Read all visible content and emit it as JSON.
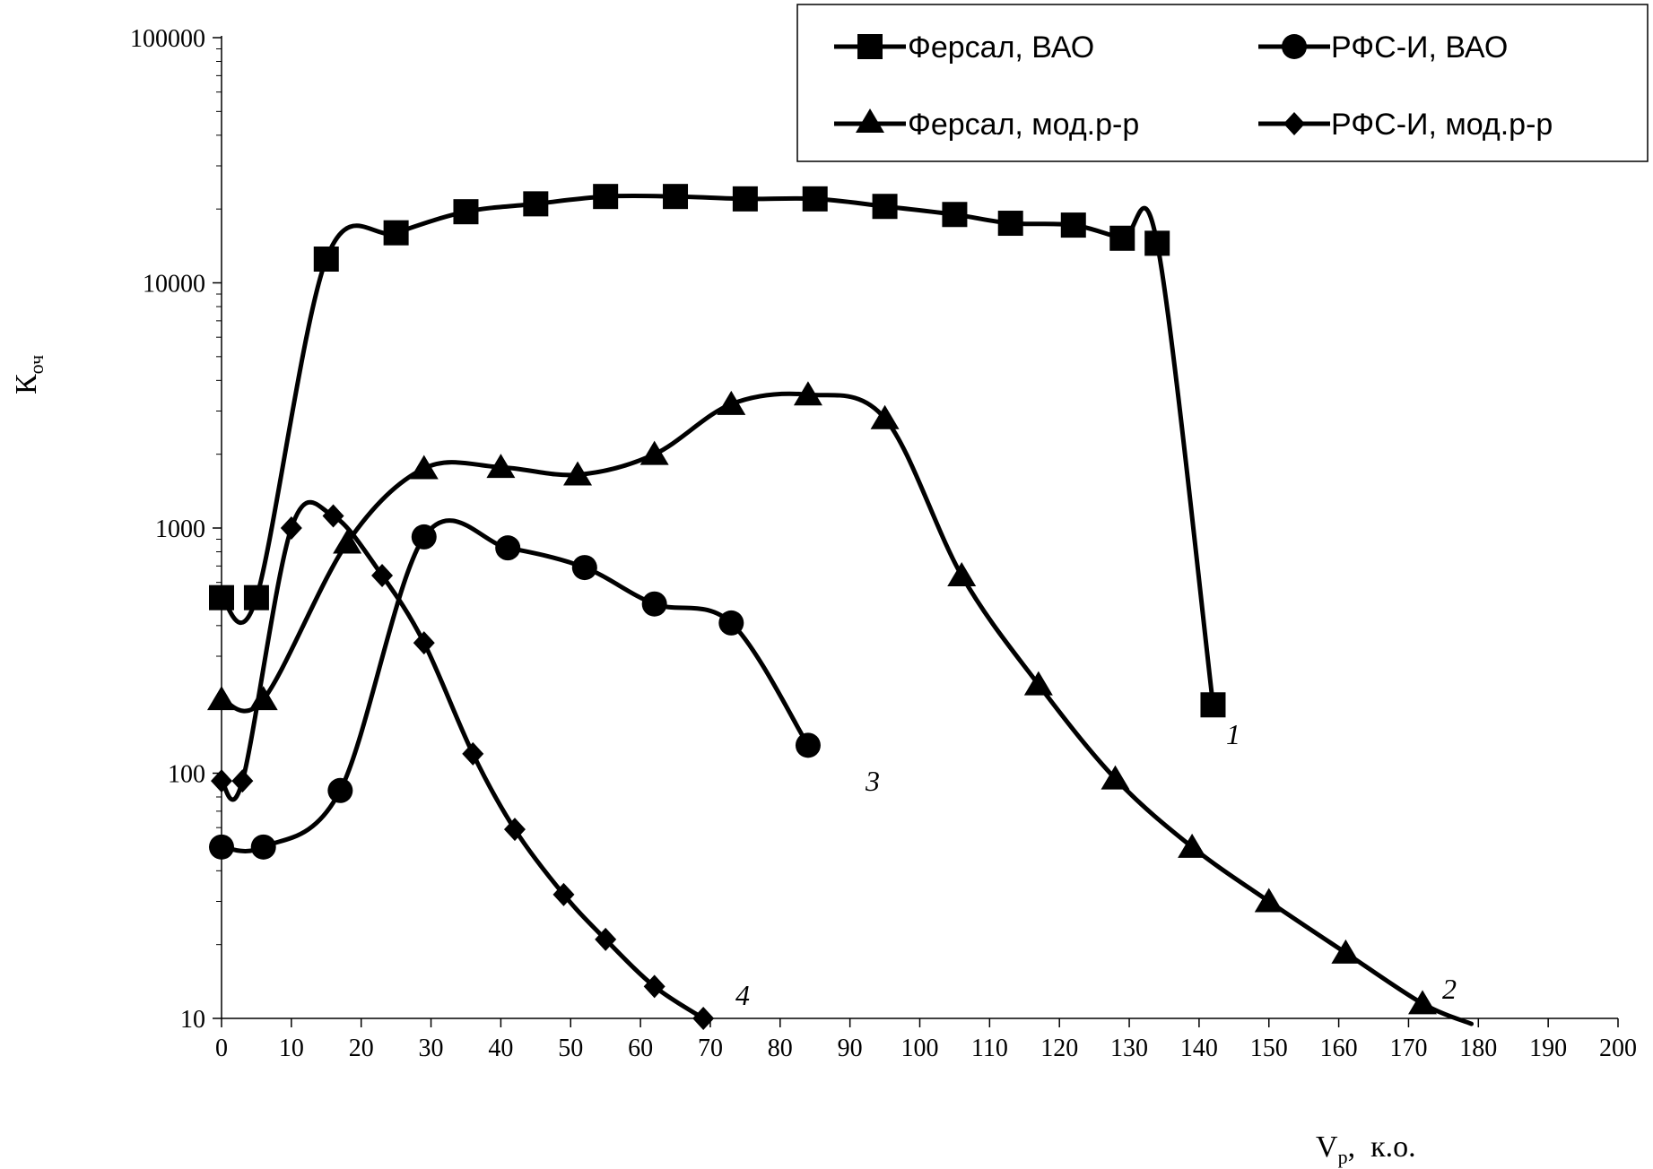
{
  "chart_data": {
    "type": "line",
    "title": "",
    "xlabel": "Vp, к.о.",
    "xlabel_main": "V",
    "xlabel_sub": "р",
    "xlabel_rest": ",  к.о.",
    "ylabel": "Коч",
    "ylabel_main": "К",
    "ylabel_sub": "оч",
    "yscale": "log",
    "xlim": [
      0,
      200
    ],
    "ylim": [
      10,
      100000
    ],
    "x_ticks": [
      0,
      10,
      20,
      30,
      40,
      50,
      60,
      70,
      80,
      90,
      100,
      110,
      120,
      130,
      140,
      150,
      160,
      170,
      180,
      190,
      200
    ],
    "y_ticks": [
      10,
      100,
      1000,
      10000,
      100000
    ],
    "y_tick_labels": [
      "10",
      "100",
      "1000",
      "10000",
      "100000"
    ],
    "grid": false,
    "legend_position": "top-right",
    "series": [
      {
        "name": "Ферсал, ВАО",
        "marker": "square",
        "curve_label": "1",
        "x": [
          0,
          5,
          15,
          25,
          35,
          45,
          55,
          65,
          75,
          85,
          95,
          105,
          113,
          122,
          129,
          134,
          142
        ],
        "y": [
          520,
          520,
          12500,
          16000,
          19500,
          21000,
          22500,
          22500,
          22000,
          22000,
          20500,
          19000,
          17500,
          17200,
          15200,
          14500,
          190
        ]
      },
      {
        "name": "РФС-И, ВАО",
        "marker": "circle",
        "curve_label": "3",
        "x": [
          0,
          6,
          17,
          29,
          41,
          52,
          62,
          73,
          84
        ],
        "y": [
          50,
          50,
          85,
          920,
          830,
          690,
          490,
          410,
          130
        ]
      },
      {
        "name": "Ферсал, мод.р-р",
        "marker": "triangle",
        "curve_label": "2",
        "x": [
          0,
          6,
          18,
          29,
          40,
          51,
          62,
          73,
          84,
          95,
          106,
          117,
          128,
          139,
          150,
          161,
          172,
          179
        ],
        "y": [
          200,
          200,
          870,
          1750,
          1770,
          1650,
          2000,
          3200,
          3500,
          2800,
          640,
          230,
          95,
          50,
          30,
          18.5,
          11.5,
          9.5
        ]
      },
      {
        "name": "РФС-И, мод.р-р",
        "marker": "diamond",
        "curve_label": "4",
        "x": [
          0,
          3,
          10,
          16,
          23,
          29,
          36,
          42,
          49,
          55,
          62,
          69
        ],
        "y": [
          93,
          93,
          1000,
          1120,
          640,
          340,
          120,
          59,
          32,
          21,
          13.5,
          10
        ]
      }
    ]
  },
  "legend": {
    "items": [
      {
        "label": "Ферсал, ВАО",
        "marker": "square"
      },
      {
        "label": "РФС-И, ВАО",
        "marker": "circle"
      },
      {
        "label": "Ферсал, мод.р-р",
        "marker": "triangle"
      },
      {
        "label": "РФС-И, мод.р-р",
        "marker": "diamond"
      }
    ]
  }
}
